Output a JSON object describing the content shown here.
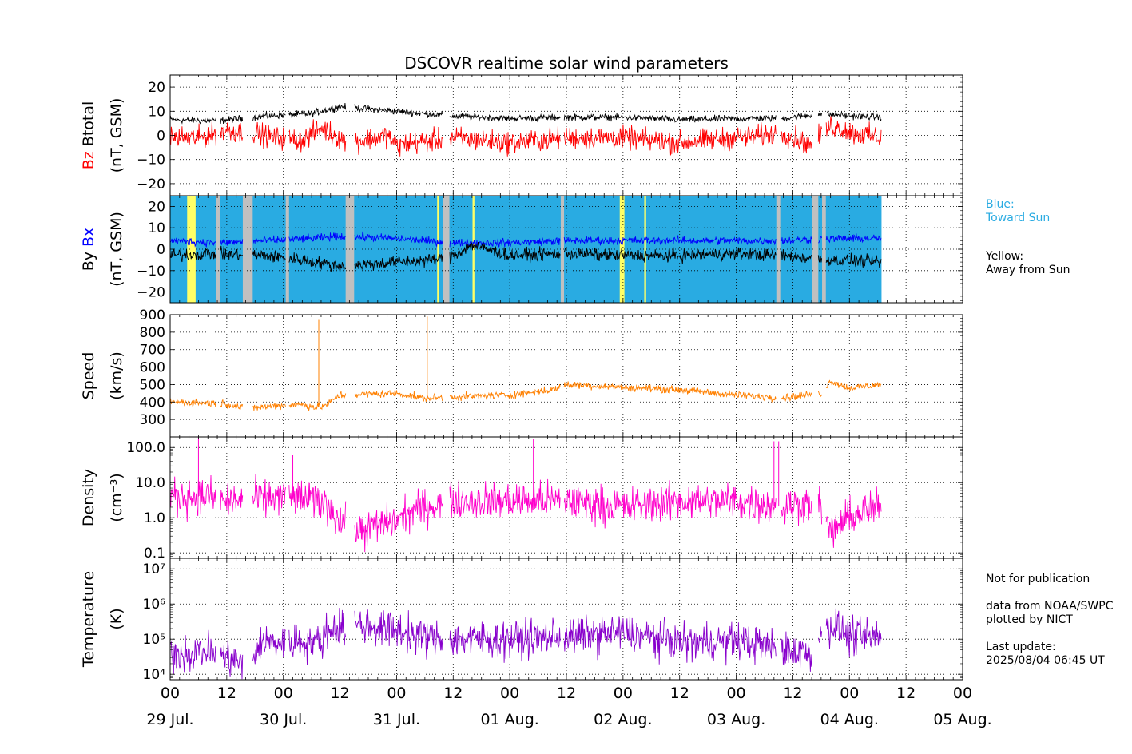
{
  "chart_data": {
    "type": "line",
    "title": "DSCOVR realtime solar wind parameters",
    "x_range_hours": [
      0,
      168
    ],
    "x_ticks": [
      {
        "hour": 0,
        "label": "00"
      },
      {
        "hour": 12,
        "label": "12"
      },
      {
        "hour": 24,
        "label": "00"
      },
      {
        "hour": 36,
        "label": "12"
      },
      {
        "hour": 48,
        "label": "00"
      },
      {
        "hour": 60,
        "label": "12"
      },
      {
        "hour": 72,
        "label": "00"
      },
      {
        "hour": 84,
        "label": "12"
      },
      {
        "hour": 96,
        "label": "00"
      },
      {
        "hour": 108,
        "label": "12"
      },
      {
        "hour": 120,
        "label": "00"
      },
      {
        "hour": 132,
        "label": "12"
      },
      {
        "hour": 144,
        "label": "00"
      },
      {
        "hour": 156,
        "label": "12"
      },
      {
        "hour": 168,
        "label": "00"
      }
    ],
    "date_labels": [
      {
        "hour": 0,
        "label": "29 Jul."
      },
      {
        "hour": 24,
        "label": "30 Jul."
      },
      {
        "hour": 48,
        "label": "31 Jul."
      },
      {
        "hour": 72,
        "label": "01 Aug."
      },
      {
        "hour": 96,
        "label": "02 Aug."
      },
      {
        "hour": 120,
        "label": "03 Aug."
      },
      {
        "hour": 144,
        "label": "04 Aug."
      },
      {
        "hour": 168,
        "label": "05 Aug."
      }
    ],
    "data_end_hour": 150.8,
    "gaps_hours": [
      [
        9.8,
        10.6
      ],
      [
        15.4,
        17.5
      ],
      [
        24.5,
        25.2
      ],
      [
        37.2,
        39.0
      ],
      [
        57.8,
        59.2
      ],
      [
        82.8,
        83.5
      ],
      [
        128.5,
        129.5
      ],
      [
        136.0,
        137.4
      ],
      [
        138.2,
        139.0
      ]
    ],
    "panels": [
      {
        "id": "mag",
        "ylabel_line1_parts": [
          {
            "text": "Bz",
            "color": "#ff0000"
          },
          {
            "text": "  Btotal",
            "color": "#000000"
          }
        ],
        "ylabel_line2": "(nT, GSM)",
        "scale": "linear",
        "ylim": [
          -25,
          25
        ],
        "yticks": [
          -20,
          -10,
          0,
          10,
          20
        ],
        "ytick_labels": [
          "−20",
          "−10",
          "0",
          "10",
          "20"
        ],
        "series": [
          {
            "name": "Btotal",
            "color": "#000000",
            "profile": [
              [
                0,
                6.5
              ],
              [
                10,
                6
              ],
              [
                20,
                8
              ],
              [
                30,
                9
              ],
              [
                36,
                12
              ],
              [
                48,
                10
              ],
              [
                60,
                8
              ],
              [
                72,
                7
              ],
              [
                84,
                7.5
              ],
              [
                96,
                7.5
              ],
              [
                108,
                6.5
              ],
              [
                120,
                7
              ],
              [
                130,
                7
              ],
              [
                138,
                9
              ],
              [
                145,
                8
              ],
              [
                150.8,
                7.5
              ]
            ],
            "noise": 1.2
          },
          {
            "name": "Bz",
            "color": "#ff0000",
            "profile": [
              [
                0,
                -1
              ],
              [
                6,
                -1
              ],
              [
                12,
                2
              ],
              [
                18,
                1
              ],
              [
                22,
                -1
              ],
              [
                28,
                -2
              ],
              [
                32,
                3
              ],
              [
                38,
                -3
              ],
              [
                46,
                0
              ],
              [
                48,
                -4
              ],
              [
                60,
                -1
              ],
              [
                72,
                -3
              ],
              [
                84,
                -1
              ],
              [
                96,
                -1
              ],
              [
                108,
                -3
              ],
              [
                120,
                -1
              ],
              [
                130,
                1
              ],
              [
                136,
                -4
              ],
              [
                140,
                4
              ],
              [
                145,
                1
              ],
              [
                150.8,
                -1
              ]
            ],
            "noise": 4
          }
        ]
      },
      {
        "id": "bxby",
        "ylabel_line1_parts": [
          {
            "text": "By",
            "color": "#000000"
          },
          {
            "text": "  Bx",
            "color": "#0000ff"
          }
        ],
        "ylabel_line2": "(nT, GSM)",
        "scale": "linear",
        "ylim": [
          -25,
          25
        ],
        "yticks": [
          -20,
          -10,
          0,
          10,
          20
        ],
        "ytick_labels": [
          "−20",
          "−10",
          "0",
          "10",
          "20"
        ],
        "background_sector_colors": {
          "toward": "#29abe2",
          "away": "#ffff66",
          "nodata": "#c0c0c0"
        },
        "away_intervals_hours": [
          [
            3.6,
            5.4
          ],
          [
            56.6,
            57.0
          ],
          [
            64.1,
            64.5
          ],
          [
            95.3,
            96.3
          ],
          [
            100.5,
            100.9
          ]
        ],
        "series": [
          {
            "name": "Bx",
            "color": "#0000ff",
            "profile": [
              [
                0,
                4
              ],
              [
                10,
                3
              ],
              [
                20,
                4
              ],
              [
                30,
                5
              ],
              [
                36,
                6
              ],
              [
                48,
                5
              ],
              [
                60,
                3
              ],
              [
                72,
                3
              ],
              [
                84,
                4
              ],
              [
                96,
                4
              ],
              [
                108,
                4
              ],
              [
                120,
                4
              ],
              [
                130,
                4
              ],
              [
                140,
                5
              ],
              [
                150.8,
                5
              ]
            ],
            "noise": 1.6
          },
          {
            "name": "By",
            "color": "#000000",
            "profile": [
              [
                0,
                -3
              ],
              [
                8,
                -2
              ],
              [
                20,
                -3
              ],
              [
                28,
                -5
              ],
              [
                36,
                -8
              ],
              [
                48,
                -6
              ],
              [
                56,
                -5
              ],
              [
                60,
                -3
              ],
              [
                64,
                2
              ],
              [
                72,
                -3
              ],
              [
                84,
                -2
              ],
              [
                96,
                -3
              ],
              [
                108,
                -3
              ],
              [
                120,
                -2
              ],
              [
                130,
                -3
              ],
              [
                140,
                -5
              ],
              [
                150.8,
                -6
              ]
            ],
            "noise": 2.5
          }
        ]
      },
      {
        "id": "speed",
        "ylabel_line1": "Speed",
        "ylabel_line2": "(km/s)",
        "scale": "linear",
        "ylim": [
          200,
          900
        ],
        "yticks": [
          300,
          400,
          500,
          600,
          700,
          800,
          900
        ],
        "ytick_labels": [
          "300",
          "400",
          "500",
          "600",
          "700",
          "800",
          "900"
        ],
        "series": [
          {
            "name": "Speed",
            "color": "#ff8000",
            "profile": [
              [
                0,
                400
              ],
              [
                8,
                395
              ],
              [
                12,
                390
              ],
              [
                16,
                360
              ],
              [
                22,
                380
              ],
              [
                28,
                385
              ],
              [
                31,
                370
              ],
              [
                33,
                380
              ],
              [
                36,
                440
              ],
              [
                48,
                450
              ],
              [
                54,
                420
              ],
              [
                60,
                430
              ],
              [
                72,
                440
              ],
              [
                81,
                470
              ],
              [
                84,
                500
              ],
              [
                96,
                485
              ],
              [
                108,
                470
              ],
              [
                120,
                440
              ],
              [
                130,
                425
              ],
              [
                138,
                450
              ],
              [
                140,
                520
              ],
              [
                144,
                480
              ],
              [
                150.8,
                500
              ]
            ],
            "noise": 18,
            "spikes": [
              [
                31.5,
                870
              ],
              [
                54.5,
                890
              ]
            ]
          }
        ]
      },
      {
        "id": "density",
        "ylabel_line1": "Density",
        "ylabel_line2": "(cm⁻³)",
        "scale": "log",
        "ylim": [
          0.07,
          200
        ],
        "yticks": [
          0.1,
          1,
          10,
          100
        ],
        "ytick_labels": [
          "0.1",
          "1.0",
          "10.0",
          "100.0"
        ],
        "series": [
          {
            "name": "Density",
            "color": "#ff00cc",
            "profile": [
              [
                0,
                4
              ],
              [
                8,
                4
              ],
              [
                12,
                3
              ],
              [
                24,
                4
              ],
              [
                32,
                3
              ],
              [
                36,
                0.8
              ],
              [
                40,
                0.4
              ],
              [
                48,
                0.8
              ],
              [
                54,
                2
              ],
              [
                60,
                3
              ],
              [
                72,
                3
              ],
              [
                84,
                3
              ],
              [
                96,
                2
              ],
              [
                108,
                3
              ],
              [
                120,
                3
              ],
              [
                130,
                2
              ],
              [
                136,
                3
              ],
              [
                140,
                0.3
              ],
              [
                144,
                1
              ],
              [
                150.8,
                2
              ]
            ],
            "noise": 0.45,
            "spikes": [
              [
                6,
                200
              ],
              [
                26,
                60
              ],
              [
                128,
                150
              ],
              [
                129,
                150
              ],
              [
                77,
                180
              ]
            ]
          }
        ]
      },
      {
        "id": "temperature",
        "ylabel_line1": "Temperature",
        "ylabel_line2": "(K)",
        "scale": "log",
        "ylim": [
          7000,
          20000000
        ],
        "yticks": [
          10000,
          100000,
          1000000,
          10000000
        ],
        "ytick_labels": [
          "10⁴",
          "10⁵",
          "10⁶",
          "10⁷"
        ],
        "series": [
          {
            "name": "Temperature",
            "color": "#8800cc",
            "profile": [
              [
                0,
                40000
              ],
              [
                8,
                45000
              ],
              [
                12,
                30000
              ],
              [
                16,
                20000
              ],
              [
                18,
                20000
              ],
              [
                19,
                80000
              ],
              [
                24,
                80000
              ],
              [
                32,
                90000
              ],
              [
                34,
                200000
              ],
              [
                40,
                250000
              ],
              [
                48,
                180000
              ],
              [
                52,
                120000
              ],
              [
                58,
                100000
              ],
              [
                72,
                100000
              ],
              [
                84,
                120000
              ],
              [
                96,
                150000
              ],
              [
                108,
                80000
              ],
              [
                120,
                90000
              ],
              [
                130,
                50000
              ],
              [
                136,
                40000
              ],
              [
                140,
                250000
              ],
              [
                144,
                120000
              ],
              [
                150.8,
                110000
              ]
            ],
            "noise": 0.45
          }
        ]
      }
    ]
  },
  "side_notes": {
    "imf_legend": {
      "line1": "Blue:",
      "line2": "Toward Sun",
      "line3": "Yellow:",
      "line4": "Away from Sun"
    },
    "footer": {
      "line1": "Not for publication",
      "line2": "data from NOAA/SWPC",
      "line3": "plotted by NICT",
      "line4": "Last update:",
      "line5": "2025/08/04 06:45 UT"
    }
  },
  "colors": {
    "toward": "#29abe2",
    "away_text": "#000000"
  }
}
